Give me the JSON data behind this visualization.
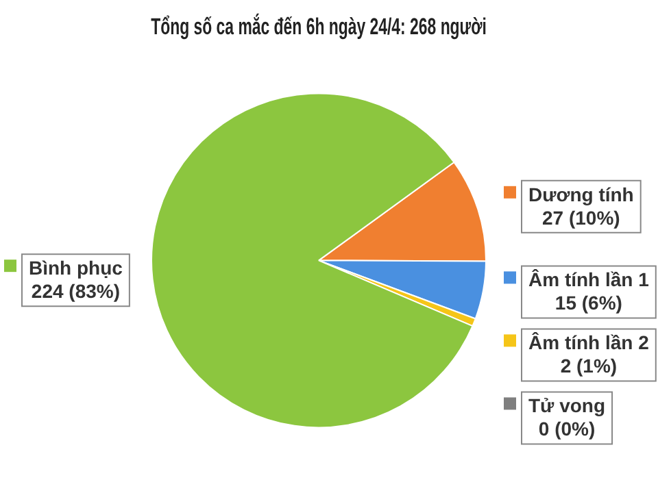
{
  "chart_data": {
    "type": "pie",
    "title": "Tổng số ca mắc đến 6h ngày 24/4: 268 người",
    "categories": [
      "Dương tính",
      "Âm tính lần 1",
      "Âm tính lần 2",
      "Tử vong",
      "Bình phục"
    ],
    "values": [
      27,
      15,
      2,
      0,
      224
    ],
    "colors": [
      "#f07f30",
      "#4a90e0",
      "#f5c518",
      "#7f7f7f",
      "#8cc63f"
    ],
    "value_labels": [
      "27 (10%)",
      "15 (6%)",
      "2 (1%)",
      "0 (0%)",
      "224 (83%)"
    ],
    "legend": "right"
  }
}
